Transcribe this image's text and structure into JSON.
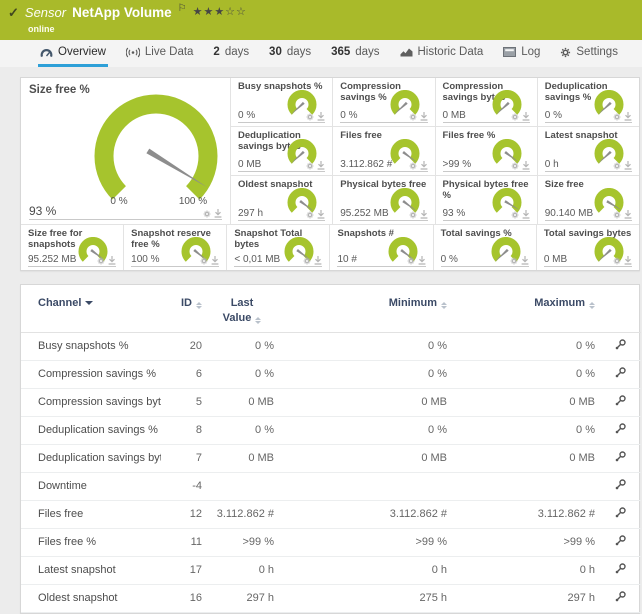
{
  "colors": {
    "header_green": "#a9ba2a",
    "gauge_green": "#a6c42d",
    "accent_blue": "#2ea0d8",
    "needle_gray": "#8d8d8d"
  },
  "header": {
    "check_icon": "✓",
    "kind": "Sensor",
    "title": "NetApp Volume",
    "flag_icon": "⚐",
    "stars_filled": 3,
    "stars_total": 5,
    "status": "online"
  },
  "tabs": [
    {
      "id": "overview",
      "label": "Overview",
      "icon": "gauge-icon",
      "active": true
    },
    {
      "id": "live-data",
      "label": "Live Data",
      "icon": "live-icon",
      "active": false
    },
    {
      "id": "2-days",
      "num": "2",
      "label": "days",
      "active": false
    },
    {
      "id": "30-days",
      "num": "30",
      "label": "days",
      "active": false
    },
    {
      "id": "365-days",
      "num": "365",
      "label": "days",
      "active": false
    },
    {
      "id": "historic-data",
      "label": "Historic Data",
      "icon": "chart-icon",
      "active": false
    },
    {
      "id": "log",
      "label": "Log",
      "icon": "log-icon",
      "active": false
    },
    {
      "id": "settings",
      "label": "Settings",
      "icon": "gear-icon",
      "active": false
    }
  ],
  "gauges": {
    "main": {
      "label": "Size free %",
      "value": "93 %",
      "scale_min": "0 %",
      "scale_max": "100 %",
      "needle_pct": 95
    },
    "small": [
      {
        "label": "Busy snapshots %",
        "value": "0 %",
        "needle_pct": 1
      },
      {
        "label": "Compression savings %",
        "value": "0 %",
        "needle_pct": 1
      },
      {
        "label": "Compression savings bytes",
        "value": "0 MB",
        "needle_pct": 1
      },
      {
        "label": "Deduplication savings %",
        "value": "0 %",
        "needle_pct": 1
      },
      {
        "label": "Deduplication savings bytes",
        "value": "0 MB",
        "needle_pct": 1
      },
      {
        "label": "Files free",
        "value": "3.112.862 #",
        "needle_pct": 97
      },
      {
        "label": "Files free %",
        "value": ">99 %",
        "needle_pct": 97
      },
      {
        "label": "Latest snapshot",
        "value": "0 h",
        "needle_pct": 1
      },
      {
        "label": "Oldest snapshot",
        "value": "297 h",
        "needle_pct": 97
      },
      {
        "label": "Physical bytes free",
        "value": "95.252 MB",
        "needle_pct": 97
      },
      {
        "label": "Physical bytes free %",
        "value": "93 %",
        "needle_pct": 95
      },
      {
        "label": "Size free",
        "value": "90.140 MB",
        "needle_pct": 95
      }
    ],
    "bottom": [
      {
        "label": "Size free for snapshots",
        "value": "95.252 MB",
        "needle_pct": 97
      },
      {
        "label": "Snapshot reserve free %",
        "value": "100 %",
        "needle_pct": 98
      },
      {
        "label": "Snapshot Total bytes",
        "value": "< 0,01 MB",
        "needle_pct": 97
      },
      {
        "label": "Snapshots #",
        "value": "10 #",
        "needle_pct": 97
      },
      {
        "label": "Total savings %",
        "value": "0 %",
        "needle_pct": 1
      },
      {
        "label": "Total savings bytes",
        "value": "0 MB",
        "needle_pct": 1
      }
    ],
    "tile_icon_names": [
      "gear-icon",
      "pin-icon"
    ]
  },
  "table": {
    "columns": [
      {
        "key": "channel",
        "label": "Channel",
        "sorted": true
      },
      {
        "key": "id",
        "label": "ID",
        "sorted": false
      },
      {
        "key": "last",
        "label": "Last Value",
        "sorted": false
      },
      {
        "key": "min",
        "label": "Minimum",
        "sorted": false
      },
      {
        "key": "max",
        "label": "Maximum",
        "sorted": false
      },
      {
        "key": "actions",
        "label": "",
        "sorted": false
      }
    ],
    "rows": [
      {
        "channel": "Busy snapshots %",
        "id": "20",
        "last": "0 %",
        "min": "0 %",
        "max": "0 %"
      },
      {
        "channel": "Compression savings %",
        "id": "6",
        "last": "0 %",
        "min": "0 %",
        "max": "0 %"
      },
      {
        "channel": "Compression savings bytes",
        "id": "5",
        "last": "0 MB",
        "min": "0 MB",
        "max": "0 MB"
      },
      {
        "channel": "Deduplication savings %",
        "id": "8",
        "last": "0 %",
        "min": "0 %",
        "max": "0 %"
      },
      {
        "channel": "Deduplication savings bytes",
        "id": "7",
        "last": "0 MB",
        "min": "0 MB",
        "max": "0 MB"
      },
      {
        "channel": "Downtime",
        "id": "-4",
        "last": "",
        "min": "",
        "max": ""
      },
      {
        "channel": "Files free",
        "id": "12",
        "last": "3.112.862 #",
        "min": "3.112.862 #",
        "max": "3.112.862 #"
      },
      {
        "channel": "Files free %",
        "id": "11",
        "last": ">99 %",
        "min": ">99 %",
        "max": ">99 %"
      },
      {
        "channel": "Latest snapshot",
        "id": "17",
        "last": "0 h",
        "min": "0 h",
        "max": "0 h"
      },
      {
        "channel": "Oldest snapshot",
        "id": "16",
        "last": "297 h",
        "min": "275 h",
        "max": "297 h"
      }
    ],
    "row_action_icon": "wrench-icon"
  }
}
